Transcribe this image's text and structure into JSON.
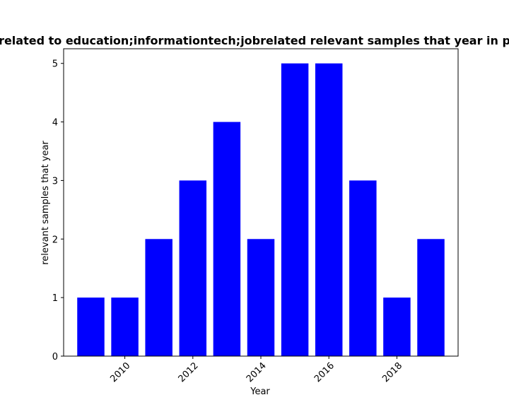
{
  "chart_data": {
    "type": "bar",
    "title": "related to education;informationtech;jobrelated relevant samples that year in p",
    "xlabel": "Year",
    "ylabel": "relevant samples that year",
    "x": [
      2009,
      2010,
      2011,
      2012,
      2013,
      2014,
      2015,
      2016,
      2017,
      2018,
      2019
    ],
    "values": [
      1,
      1,
      2,
      3,
      4,
      2,
      5,
      5,
      3,
      1,
      2
    ],
    "xlim": [
      2008.2,
      2019.8
    ],
    "ylim": [
      0,
      5.25
    ],
    "xticks": [
      2010,
      2012,
      2014,
      2016,
      2018
    ],
    "yticks": [
      0,
      1,
      2,
      3,
      4,
      5
    ],
    "bar_color": "#0000ff",
    "grid": false,
    "legend": "none"
  }
}
